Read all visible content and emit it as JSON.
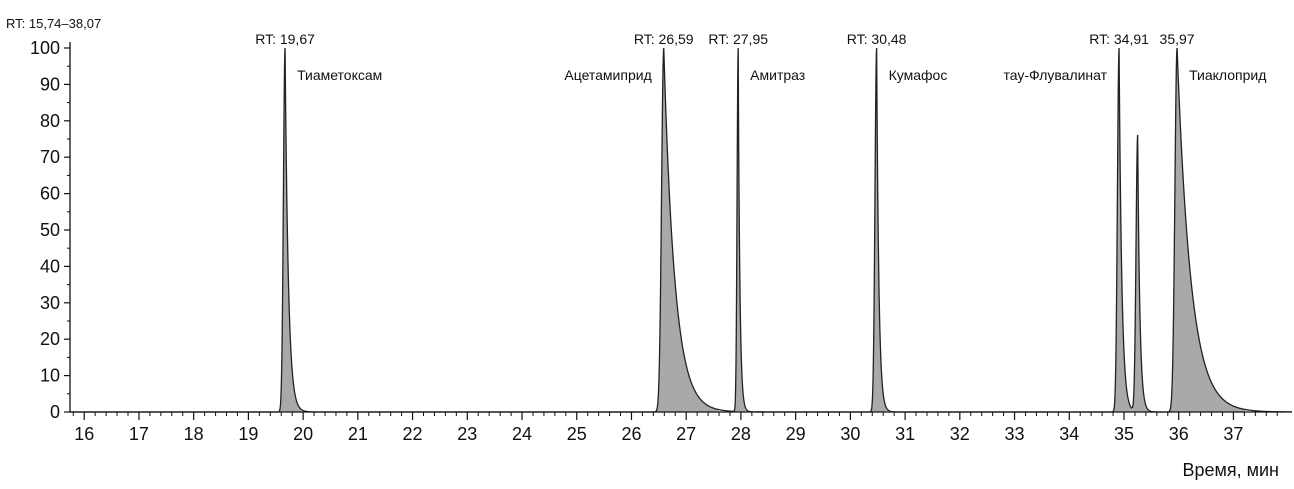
{
  "chart_data": {
    "type": "line",
    "range_label": "RT: 15,74–38,07",
    "xlabel": "Время, мин",
    "xlim": [
      15.74,
      38.07
    ],
    "ylim": [
      0,
      100
    ],
    "x_ticks": [
      "16",
      "17",
      "18",
      "19",
      "20",
      "21",
      "22",
      "23",
      "24",
      "25",
      "26",
      "27",
      "28",
      "29",
      "30",
      "31",
      "32",
      "33",
      "34",
      "35",
      "36",
      "37"
    ],
    "y_ticks": [
      "0",
      "10",
      "20",
      "30",
      "40",
      "50",
      "60",
      "70",
      "80",
      "90",
      "100"
    ],
    "line_color": "#222222",
    "fill_color": "#a9a9a9",
    "peaks": [
      {
        "rt": 19.67,
        "height": 100,
        "width": 0.03,
        "tail": 0.06,
        "rt_label": "RT: 19,67",
        "compound": "Тиаметоксам"
      },
      {
        "rt": 26.59,
        "height": 100,
        "width": 0.04,
        "tail": 0.2,
        "rt_label": "RT: 26,59",
        "compound": "Ацетамиприд"
      },
      {
        "rt": 27.95,
        "height": 100,
        "width": 0.02,
        "tail": 0.03,
        "rt_label": "RT: 27,95",
        "compound": "Амитраз"
      },
      {
        "rt": 30.48,
        "height": 100,
        "width": 0.03,
        "tail": 0.04,
        "rt_label": "RT: 30,48",
        "compound": "Кумафос"
      },
      {
        "rt": 34.91,
        "height": 100,
        "width": 0.03,
        "tail": 0.05,
        "rt_label": "RT: 34,91",
        "compound": "тау-Флувалинат"
      },
      {
        "rt": 35.25,
        "height": 76,
        "width": 0.03,
        "tail": 0.04,
        "rt_label": "",
        "compound": ""
      },
      {
        "rt": 35.97,
        "height": 100,
        "width": 0.04,
        "tail": 0.25,
        "rt_label": "35,97",
        "compound": "Тиаклоприд"
      }
    ]
  }
}
